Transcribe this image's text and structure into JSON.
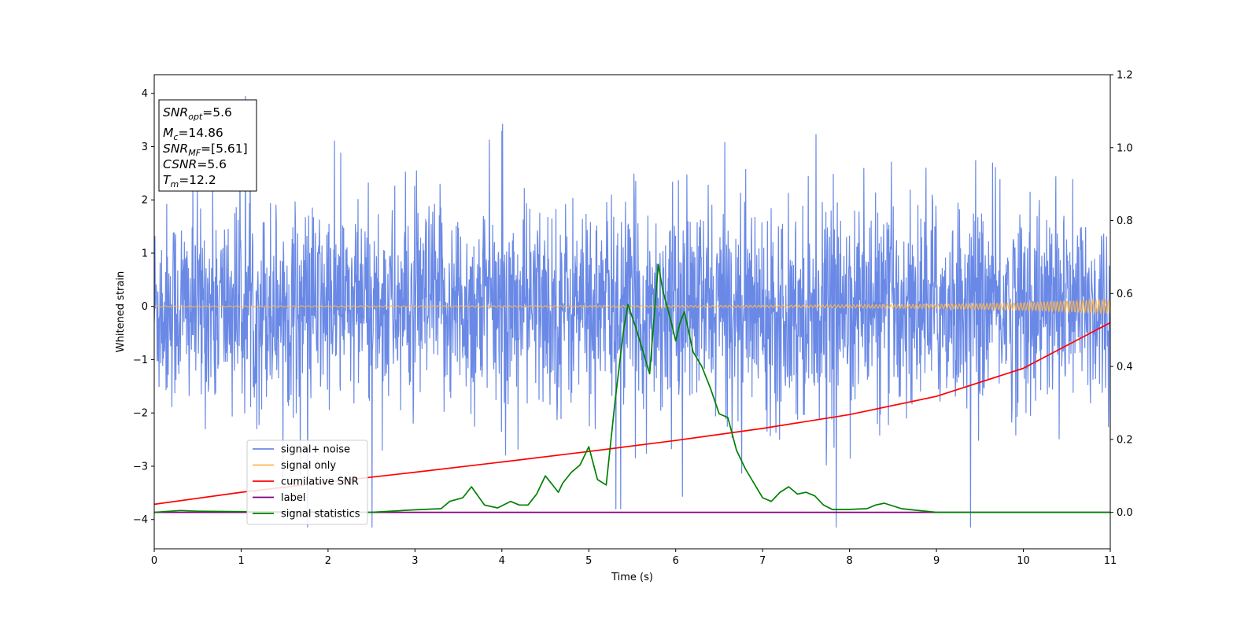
{
  "chart_data": {
    "type": "line",
    "xlabel": "Time (s)",
    "ylabel": "Whitened strain",
    "xlim": [
      0,
      11
    ],
    "ylim": [
      -4.55,
      4.35
    ],
    "y2lim": [
      -0.1,
      1.2
    ],
    "xticks": [
      "0",
      "1",
      "2",
      "3",
      "4",
      "5",
      "6",
      "7",
      "8",
      "9",
      "10",
      "11"
    ],
    "yticks": [
      "−4",
      "−3",
      "−2",
      "−1",
      "0",
      "1",
      "2",
      "3",
      "4"
    ],
    "y2ticks": [
      "0.0",
      "0.2",
      "0.4",
      "0.6",
      "0.8",
      "1.0",
      "1.2"
    ],
    "legend_position": "lower-left",
    "grid": false,
    "textbox": {
      "snr_opt": {
        "sym": "SNR",
        "sub": "opt",
        "val": "=5.6"
      },
      "mc": {
        "sym": "M",
        "sub": "c",
        "val": "=14.86"
      },
      "snr_mf": {
        "sym": "SNR",
        "sub": "MF",
        "val": "=[5.61]"
      },
      "csnr": {
        "sym": "CSNR",
        "sub": "",
        "val": "=5.6"
      },
      "tm": {
        "sym": "T",
        "sub": "m",
        "val": "=12.2"
      }
    },
    "series": [
      {
        "name": "signal+ noise",
        "color": "#6a89e6",
        "axis": "left",
        "kind": "noise",
        "typical_sd": 1.0,
        "typical_peak": 3.5
      },
      {
        "name": "signal only",
        "color": "#ffb74d",
        "axis": "left",
        "kind": "chirp",
        "x": [
          0,
          4,
          7,
          9,
          10,
          11
        ],
        "amplitude": [
          0.01,
          0.012,
          0.02,
          0.04,
          0.07,
          0.13
        ]
      },
      {
        "name": "cumilative SNR",
        "color": "#ff0000",
        "axis": "right",
        "x": [
          0,
          1,
          2,
          3,
          4,
          5,
          6,
          7,
          8,
          9,
          10,
          11
        ],
        "values": [
          0.022,
          0.055,
          0.083,
          0.11,
          0.138,
          0.167,
          0.197,
          0.23,
          0.268,
          0.318,
          0.395,
          0.52
        ]
      },
      {
        "name": "label",
        "color": "#800080",
        "axis": "right",
        "x": [
          0,
          11
        ],
        "values": [
          0,
          0
        ]
      },
      {
        "name": "signal statistics",
        "color": "#008000",
        "axis": "right",
        "x": [
          0,
          0.3,
          0.5,
          1.0,
          2.0,
          2.5,
          3.0,
          3.3,
          3.4,
          3.55,
          3.65,
          3.8,
          3.95,
          4.1,
          4.2,
          4.3,
          4.4,
          4.5,
          4.6,
          4.65,
          4.7,
          4.8,
          4.9,
          5.0,
          5.1,
          5.2,
          5.3,
          5.4,
          5.45,
          5.55,
          5.65,
          5.7,
          5.8,
          5.85,
          5.95,
          6.0,
          6.05,
          6.1,
          6.2,
          6.3,
          6.4,
          6.5,
          6.6,
          6.7,
          6.8,
          6.9,
          7.0,
          7.1,
          7.2,
          7.3,
          7.4,
          7.5,
          7.6,
          7.7,
          7.8,
          8.0,
          8.2,
          8.3,
          8.4,
          8.6,
          9.0,
          10.0,
          11.0
        ],
        "values": [
          0.0,
          0.005,
          0.003,
          0.002,
          0.001,
          0.0,
          0.007,
          0.01,
          0.03,
          0.04,
          0.07,
          0.02,
          0.012,
          0.03,
          0.02,
          0.02,
          0.05,
          0.1,
          0.07,
          0.055,
          0.08,
          0.11,
          0.13,
          0.18,
          0.09,
          0.075,
          0.3,
          0.5,
          0.57,
          0.5,
          0.42,
          0.38,
          0.68,
          0.61,
          0.52,
          0.47,
          0.52,
          0.55,
          0.44,
          0.4,
          0.34,
          0.27,
          0.26,
          0.17,
          0.12,
          0.08,
          0.04,
          0.03,
          0.055,
          0.07,
          0.05,
          0.055,
          0.045,
          0.02,
          0.008,
          0.008,
          0.01,
          0.02,
          0.025,
          0.01,
          0.0,
          0.0,
          0.0
        ]
      }
    ]
  }
}
